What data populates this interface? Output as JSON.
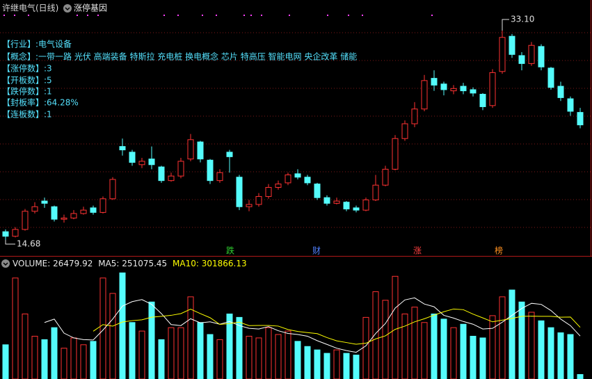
{
  "header": {
    "title": "许继电气(日线)",
    "tab": "涨停基因"
  },
  "info": [
    "【行业】:电气设备",
    "【概念】:一带一路 光伏 高端装备 特斯拉 充电桩 换电概念 芯片 特高压 智能电网 央企改革 储能",
    "【涨停数】:3",
    "【开板数】:5",
    "【跌停数】:1",
    "【封板率】:64.28%",
    "【连板数】:1"
  ],
  "chart_data": [
    {
      "type": "candlestick",
      "open": [
        15.4,
        15.0,
        15.6,
        17.2,
        18.1,
        17.6,
        16.5,
        16.6,
        17.0,
        17.5,
        17.1,
        18.3,
        22.9,
        22.4,
        21.3,
        21.8,
        21.1,
        19.9,
        20.3,
        21.8,
        23.3,
        21.7,
        19.9,
        22.4,
        20.2,
        17.6,
        17.8,
        18.5,
        19.3,
        19.7,
        20.5,
        20.2,
        19.6,
        18.4,
        17.9,
        18.0,
        17.5,
        17.3,
        18.2,
        19.5,
        20.9,
        23.6,
        24.9,
        26.2,
        28.9,
        28.4,
        27.8,
        28.2,
        27.9,
        27.5,
        26.5,
        29.5,
        32.6,
        30.9,
        30.2,
        31.7,
        29.8,
        28.2,
        27.1,
        25.9
      ],
      "close": [
        15.0,
        15.6,
        17.2,
        17.6,
        17.9,
        16.5,
        16.6,
        17.0,
        17.3,
        17.1,
        18.3,
        20.0,
        22.6,
        21.5,
        21.6,
        21.3,
        19.9,
        20.3,
        21.6,
        23.5,
        21.8,
        19.9,
        20.6,
        22.0,
        17.6,
        17.8,
        18.5,
        19.3,
        19.6,
        20.4,
        20.2,
        19.7,
        18.4,
        17.9,
        18.1,
        17.4,
        17.3,
        18.2,
        19.5,
        20.9,
        23.6,
        24.9,
        26.2,
        28.7,
        28.3,
        27.9,
        28.0,
        27.8,
        27.6,
        26.4,
        29.4,
        32.5,
        31.0,
        30.2,
        31.8,
        29.9,
        28.1,
        27.2,
        26.0,
        24.8
      ],
      "high": [
        15.6,
        15.8,
        17.4,
        18.0,
        18.4,
        17.7,
        16.9,
        17.3,
        17.6,
        17.7,
        18.5,
        20.2,
        23.6,
        22.6,
        21.9,
        22.9,
        21.2,
        20.6,
        21.9,
        24.0,
        23.4,
        21.8,
        20.9,
        22.6,
        20.4,
        18.2,
        18.8,
        19.6,
        19.9,
        20.6,
        20.9,
        20.4,
        19.7,
        18.6,
        18.4,
        18.1,
        17.7,
        18.4,
        20.4,
        21.2,
        23.9,
        25.2,
        26.8,
        29.2,
        29.6,
        28.6,
        28.3,
        28.5,
        28.1,
        27.6,
        29.7,
        33.1,
        32.8,
        31.2,
        32.1,
        31.9,
        29.9,
        28.6,
        27.3,
        26.3
      ],
      "low": [
        14.68,
        14.9,
        15.5,
        17.0,
        17.5,
        16.3,
        16.2,
        16.5,
        16.9,
        16.9,
        17.0,
        18.2,
        22.1,
        21.2,
        21.0,
        20.9,
        19.7,
        19.8,
        20.1,
        21.6,
        21.5,
        19.6,
        19.7,
        20.6,
        17.3,
        17.2,
        17.6,
        18.3,
        19.1,
        19.5,
        20.0,
        19.5,
        18.2,
        17.7,
        17.8,
        17.2,
        17.1,
        17.2,
        18.1,
        19.4,
        20.8,
        23.4,
        24.6,
        26.0,
        27.8,
        27.4,
        27.5,
        27.5,
        27.3,
        26.1,
        26.3,
        29.3,
        30.7,
        29.6,
        30.0,
        29.6,
        27.9,
        26.9,
        25.6,
        24.5
      ],
      "ylim": [
        13.27,
        35.18
      ],
      "up_color": "#ff3232",
      "down_color": "#54fcfc",
      "annotations": [
        {
          "text": "33.10"
        },
        {
          "text": "14.68"
        }
      ],
      "markers": [
        {
          "label": "跌",
          "color": "#30d030"
        },
        {
          "label": "财",
          "color": "#5080ff"
        },
        {
          "label": "涨",
          "color": "#ff4040"
        },
        {
          "label": "榜",
          "color": "#ff9020"
        }
      ]
    },
    {
      "type": "bar",
      "ylim": [
        0,
        650000
      ],
      "series": [
        {
          "name": "VOLUME:",
          "type": "bar",
          "color": "#ffffff",
          "values": [
            200000,
            590000,
            380000,
            250000,
            230000,
            300000,
            180000,
            240000,
            200000,
            220000,
            590000,
            500000,
            620000,
            330000,
            280000,
            450000,
            230000,
            300000,
            300000,
            480000,
            330000,
            260000,
            230000,
            380000,
            360000,
            250000,
            240000,
            300000,
            260000,
            280000,
            220000,
            190000,
            170000,
            150000,
            170000,
            150000,
            140000,
            360000,
            510000,
            460000,
            600000,
            380000,
            420000,
            330000,
            380000,
            350000,
            300000,
            320000,
            250000,
            240000,
            370000,
            480000,
            520000,
            450000,
            390000,
            340000,
            300000,
            270000,
            260000,
            26479.92
          ]
        },
        {
          "name": "MA5:",
          "type": "line",
          "color": "#ffffff",
          "values": [
            null,
            null,
            null,
            null,
            330000,
            350000,
            268000,
            240000,
            230000,
            228000,
            286000,
            350000,
            426000,
            452000,
            464000,
            436000,
            382000,
            318000,
            312000,
            352000,
            328000,
            334000,
            320000,
            336000,
            312000,
            296000,
            292000,
            306000,
            282000,
            266000,
            260000,
            250000,
            224000,
            202000,
            180000,
            166000,
            156000,
            194000,
            266000,
            324000,
            414000,
            462000,
            474000,
            438000,
            422000,
            372000,
            356000,
            336000,
            320000,
            292000,
            296000,
            332000,
            372000,
            412000,
            442000,
            436000,
            400000,
            350000,
            312000,
            251075.45
          ]
        },
        {
          "name": "MA10:",
          "type": "line",
          "color": "#ffff00",
          "values": [
            null,
            null,
            null,
            null,
            null,
            null,
            null,
            null,
            null,
            279000,
            318000,
            309000,
            333000,
            341000,
            346000,
            361000,
            366000,
            372000,
            382000,
            408000,
            382000,
            358000,
            319000,
            324000,
            332000,
            312000,
            313000,
            313000,
            309000,
            289000,
            278000,
            271000,
            265000,
            242000,
            223000,
            213000,
            203000,
            209000,
            234000,
            252000,
            290000,
            309000,
            334000,
            352000,
            373000,
            393000,
            409000,
            405000,
            379000,
            357000,
            334000,
            344000,
            354000,
            366000,
            367000,
            366000,
            366000,
            361000,
            362000,
            301866.13
          ]
        }
      ]
    }
  ]
}
